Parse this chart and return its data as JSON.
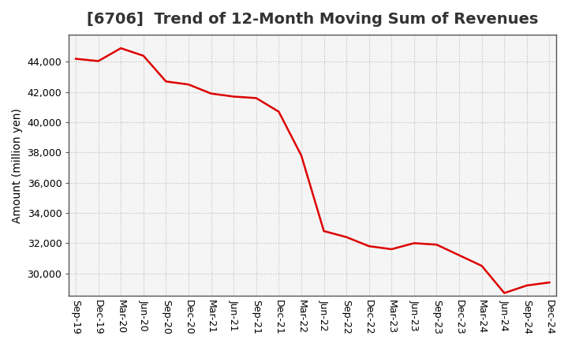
{
  "title": "[6706]  Trend of 12-Month Moving Sum of Revenues",
  "ylabel": "Amount (million yen)",
  "line_color": "#dd0000",
  "bg_color": "#ffffff",
  "plot_bg_color": "#f5f5f5",
  "grid_color": "#bbbbbb",
  "ylim": [
    28500,
    45800
  ],
  "yticks": [
    30000,
    32000,
    34000,
    36000,
    38000,
    40000,
    42000,
    44000
  ],
  "x_labels": [
    "Sep-19",
    "Dec-19",
    "Mar-20",
    "Jun-20",
    "Sep-20",
    "Dec-20",
    "Mar-21",
    "Jun-21",
    "Sep-21",
    "Dec-21",
    "Mar-22",
    "Jun-22",
    "Sep-22",
    "Dec-22",
    "Mar-23",
    "Jun-23",
    "Sep-23",
    "Dec-23",
    "Mar-24",
    "Jun-24",
    "Sep-24",
    "Dec-24"
  ],
  "values": [
    44200,
    44050,
    44900,
    44400,
    42700,
    42500,
    41900,
    41700,
    41600,
    40700,
    37800,
    32800,
    32400,
    31800,
    31600,
    32000,
    31900,
    31200,
    30500,
    28700,
    29200,
    29400
  ],
  "title_fontsize": 14,
  "label_fontsize": 10,
  "tick_fontsize": 9
}
